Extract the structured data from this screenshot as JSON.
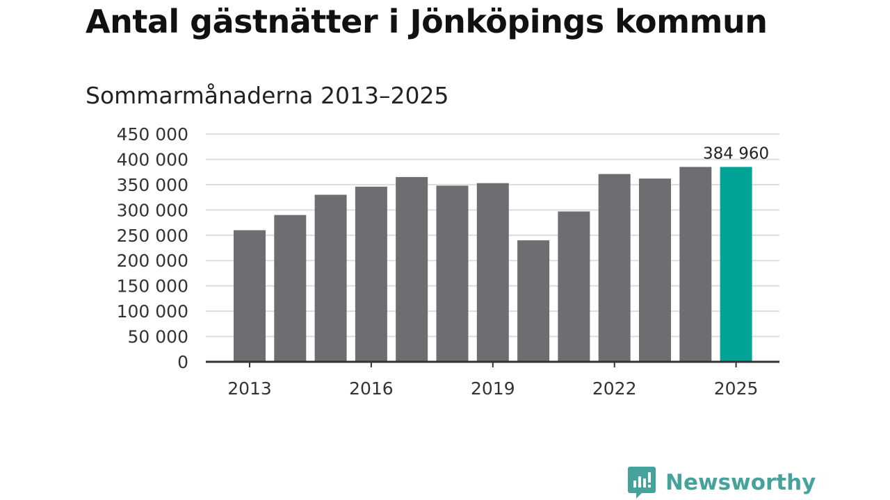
{
  "chart_data": {
    "type": "bar",
    "title": "Antal gästnätter i Jönköpings kommun",
    "subtitle": "Sommarmånaderna 2013–2025",
    "categories": [
      "2013",
      "2014",
      "2015",
      "2016",
      "2017",
      "2018",
      "2019",
      "2020",
      "2021",
      "2022",
      "2023",
      "2024",
      "2025"
    ],
    "values": [
      260000,
      290000,
      330000,
      346000,
      365000,
      348000,
      353000,
      240000,
      297000,
      371000,
      362000,
      385000,
      384960
    ],
    "x_tick_labels": [
      "2013",
      "2016",
      "2019",
      "2022",
      "2025"
    ],
    "y_tick_labels": [
      "0",
      "50 000",
      "100 000",
      "150 000",
      "200 000",
      "250 000",
      "300 000",
      "350 000",
      "400 000",
      "450 000"
    ],
    "y_ticks": [
      0,
      50000,
      100000,
      150000,
      200000,
      250000,
      300000,
      350000,
      400000,
      450000
    ],
    "ylim": [
      0,
      450000
    ],
    "xlabel": "",
    "ylabel": "",
    "grid": true,
    "data_labels": [
      {
        "category": "2025",
        "text": "384 960"
      }
    ],
    "colors": {
      "default": "#6e6d72",
      "highlight": "#00a396",
      "grid": "#dddddd",
      "axis": "#333333"
    },
    "highlight_category": "2025"
  },
  "logo": {
    "icon": "newsworthy-logo-icon",
    "text": "Newsworthy",
    "color": "#45a39b"
  }
}
